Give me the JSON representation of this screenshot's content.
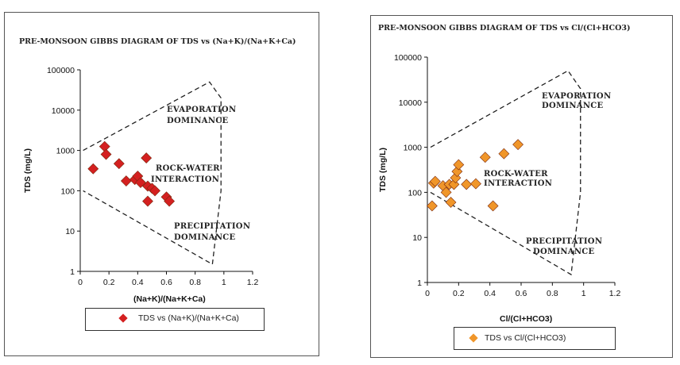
{
  "chart_data": [
    {
      "type": "scatter",
      "title": "PRE-MONSOON GIBBS DIAGRAM OF TDS vs (Na+K)/(Na+K+Ca)",
      "xlabel": "(Na+K)/(Na+K+Ca)",
      "ylabel": "TDS (mg/L)",
      "xlim": [
        0,
        1.2
      ],
      "ylim": [
        1,
        100000
      ],
      "yscale": "log",
      "x_ticks": [
        "0",
        "0.2",
        "0.4",
        "0.6",
        "0.8",
        "1",
        "1.2"
      ],
      "y_ticks": [
        "1",
        "10",
        "100",
        "1000",
        "10000",
        "100000"
      ],
      "zones": [
        "EVAPORATION",
        "DOMINANCE",
        "ROCK-WATER",
        "INTERACTION",
        "PRECIPITATION",
        "DOMINANCE"
      ],
      "legend": "TDS vs (Na+K)/(Na+K+Ca)",
      "color": "#d42020",
      "series": [
        {
          "name": "TDS vs (Na+K)/(Na+K+Ca)",
          "points": [
            [
              0.09,
              350
            ],
            [
              0.17,
              1250
            ],
            [
              0.18,
              800
            ],
            [
              0.27,
              470
            ],
            [
              0.32,
              175
            ],
            [
              0.38,
              190
            ],
            [
              0.4,
              230
            ],
            [
              0.42,
              160
            ],
            [
              0.46,
              650
            ],
            [
              0.47,
              130
            ],
            [
              0.5,
              115
            ],
            [
              0.52,
              100
            ],
            [
              0.47,
              55
            ],
            [
              0.6,
              70
            ],
            [
              0.62,
              55
            ]
          ]
        }
      ]
    },
    {
      "type": "scatter",
      "title": "PRE-MONSOON GIBBS DIAGRAM OF TDS vs Cl/(Cl+HCO3)",
      "xlabel": "Cl/(Cl+HCO3)",
      "ylabel": "TDS (mg/L)",
      "xlim": [
        0,
        1.2
      ],
      "ylim": [
        1,
        100000
      ],
      "yscale": "log",
      "x_ticks": [
        "0",
        "0.2",
        "0.4",
        "0.6",
        "0.8",
        "1",
        "1.2"
      ],
      "y_ticks": [
        "1",
        "10",
        "100",
        "1000",
        "10000",
        "100000"
      ],
      "zones": [
        "EVAPORATION",
        "DOMINANCE",
        "ROCK-WATER",
        "INTERACTION",
        "PRECIPITATION",
        "DOMINANCE"
      ],
      "legend": "TDS vs Cl/(Cl+HCO3)",
      "color": "#f0962a",
      "series": [
        {
          "name": "TDS vs Cl/(Cl+HCO3)",
          "points": [
            [
              0.03,
              50
            ],
            [
              0.04,
              160
            ],
            [
              0.05,
              175
            ],
            [
              0.1,
              140
            ],
            [
              0.12,
              100
            ],
            [
              0.14,
              150
            ],
            [
              0.15,
              60
            ],
            [
              0.17,
              150
            ],
            [
              0.18,
              210
            ],
            [
              0.19,
              290
            ],
            [
              0.2,
              410
            ],
            [
              0.25,
              150
            ],
            [
              0.31,
              155
            ],
            [
              0.37,
              600
            ],
            [
              0.42,
              50
            ],
            [
              0.49,
              720
            ],
            [
              0.58,
              1150
            ]
          ]
        }
      ]
    }
  ]
}
